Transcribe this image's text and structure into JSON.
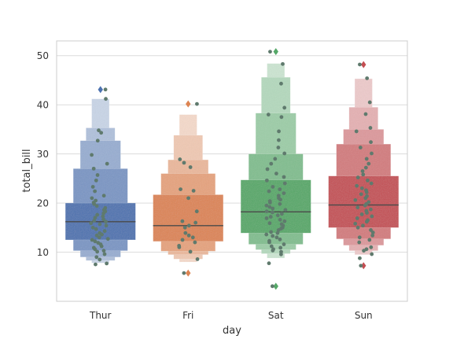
{
  "chart_data": {
    "type": "boxen",
    "title": "",
    "xlabel": "day",
    "ylabel": "total_bill",
    "ylim": [
      0,
      53
    ],
    "yticks": [
      10,
      20,
      30,
      40,
      50
    ],
    "grid": "horizontal",
    "categories": [
      "Thur",
      "Fri",
      "Sat",
      "Sun"
    ],
    "colors": {
      "Thur": "#4c72b0",
      "Fri": "#dd8452",
      "Sat": "#55a868",
      "Sun": "#c44e52",
      "points": "#5f7a6d",
      "median": "#4a4a4a",
      "grid": "#dcdcdc",
      "frame": "#cccccc"
    },
    "series": [
      {
        "category": "Thur",
        "median": 16.2,
        "levels": [
          [
            12.5,
            20.0
          ],
          [
            10.3,
            27.0
          ],
          [
            9.0,
            32.7
          ],
          [
            8.3,
            35.3
          ],
          [
            7.8,
            41.2
          ]
        ],
        "outliers": [
          43.1
        ],
        "points": [
          7.51,
          7.7,
          8.5,
          9.0,
          9.6,
          10.1,
          10.3,
          10.6,
          10.9,
          11.2,
          11.6,
          11.9,
          12.2,
          12.5,
          12.7,
          13.0,
          13.4,
          13.6,
          13.9,
          14.3,
          14.7,
          15.0,
          15.4,
          15.7,
          15.9,
          16.2,
          16.4,
          16.7,
          17.0,
          17.3,
          17.6,
          17.9,
          18.3,
          18.6,
          19.0,
          19.4,
          19.8,
          20.1,
          20.5,
          21.0,
          21.5,
          22.4,
          23.3,
          24.6,
          25.7,
          27.0,
          28.0,
          29.8,
          32.7,
          34.3,
          34.8,
          41.2,
          43.1
        ]
      },
      {
        "category": "Fri",
        "median": 15.4,
        "levels": [
          [
            12.2,
            21.7
          ],
          [
            10.2,
            26.0
          ],
          [
            9.5,
            28.8
          ],
          [
            8.6,
            33.8
          ],
          [
            8.0,
            38.0
          ]
        ],
        "outliers": [
          5.75,
          40.17
        ],
        "points": [
          5.75,
          8.58,
          10.1,
          11.0,
          11.3,
          12.0,
          12.5,
          13.0,
          13.4,
          13.9,
          15.0,
          15.4,
          16.0,
          16.3,
          18.3,
          21.0,
          22.5,
          22.8,
          27.3,
          28.2,
          28.9,
          40.17
        ]
      },
      {
        "category": "Sat",
        "median": 18.2,
        "levels": [
          [
            13.9,
            24.7
          ],
          [
            11.6,
            30.0
          ],
          [
            10.5,
            38.3
          ],
          [
            9.7,
            45.6
          ],
          [
            8.8,
            48.4
          ]
        ],
        "outliers": [
          3.07,
          50.81
        ],
        "points": [
          3.07,
          7.74,
          9.55,
          10.07,
          10.34,
          10.6,
          10.9,
          11.2,
          11.6,
          12.0,
          12.3,
          12.6,
          13.0,
          13.3,
          13.6,
          13.9,
          14.1,
          14.5,
          14.8,
          15.0,
          15.4,
          15.7,
          15.9,
          16.3,
          16.6,
          16.9,
          17.2,
          17.5,
          17.8,
          18.1,
          18.3,
          18.6,
          18.9,
          19.2,
          19.5,
          19.8,
          20.1,
          20.4,
          20.7,
          21.0,
          21.5,
          22.0,
          22.4,
          22.8,
          23.3,
          24.0,
          24.6,
          25.3,
          26.0,
          26.9,
          28.0,
          29.0,
          30.1,
          31.3,
          32.8,
          34.6,
          37.5,
          38.0,
          39.4,
          44.3,
          48.3,
          50.8
        ]
      },
      {
        "category": "Sun",
        "median": 19.6,
        "levels": [
          [
            15.0,
            25.5
          ],
          [
            12.7,
            32.0
          ],
          [
            11.4,
            35.0
          ],
          [
            10.3,
            39.5
          ],
          [
            9.5,
            45.3
          ]
        ],
        "outliers": [
          7.25,
          48.17
        ],
        "points": [
          7.25,
          8.77,
          9.6,
          10.3,
          10.6,
          11.0,
          12.0,
          12.5,
          13.0,
          13.4,
          14.0,
          14.5,
          15.0,
          15.4,
          15.8,
          16.2,
          16.5,
          16.9,
          17.3,
          17.7,
          18.0,
          18.4,
          18.7,
          19.1,
          19.5,
          19.8,
          20.2,
          20.6,
          21.0,
          21.4,
          21.8,
          22.2,
          22.6,
          23.0,
          23.5,
          24.0,
          24.6,
          25.2,
          25.8,
          26.5,
          27.2,
          28.0,
          29.0,
          30.1,
          31.3,
          32.4,
          34.6,
          35.3,
          38.1,
          40.5,
          45.4,
          48.2
        ]
      }
    ]
  }
}
